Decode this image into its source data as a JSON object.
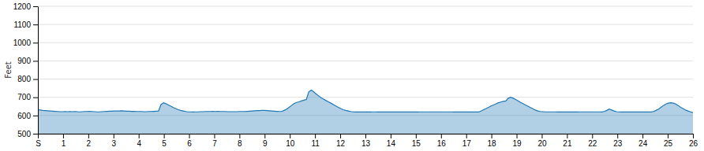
{
  "chart_data": {
    "type": "area",
    "ylabel": "Feet",
    "xlim": [
      0,
      26
    ],
    "ylim": [
      500,
      1200
    ],
    "yticks": [
      500,
      600,
      700,
      800,
      900,
      1000,
      1100,
      1200
    ],
    "xticks": [
      {
        "value": 0,
        "label": "S"
      },
      1,
      2,
      3,
      4,
      5,
      6,
      7,
      8,
      9,
      10,
      11,
      12,
      13,
      14,
      15,
      16,
      17,
      18,
      19,
      20,
      21,
      22,
      23,
      24,
      25,
      26
    ],
    "grid": true,
    "x": [
      0,
      0.0977,
      0.1955,
      0.2932,
      0.391,
      0.4887,
      0.5865,
      0.6842,
      0.782,
      0.8797,
      0.9774,
      1.0752,
      1.1729,
      1.2707,
      1.3684,
      1.4662,
      1.5639,
      1.6617,
      1.7594,
      1.8571,
      1.9549,
      2.0526,
      2.1504,
      2.2481,
      2.3459,
      2.4436,
      2.5414,
      2.6391,
      2.7368,
      2.8346,
      2.9323,
      3.0301,
      3.1278,
      3.2256,
      3.3233,
      3.4211,
      3.5188,
      3.6165,
      3.7143,
      3.812,
      3.9098,
      4.0075,
      4.1053,
      4.203,
      4.3008,
      4.3985,
      4.4962,
      4.594,
      4.6917,
      4.7895,
      4.8872,
      4.985,
      5.0827,
      5.1805,
      5.2782,
      5.3759,
      5.4737,
      5.5714,
      5.6692,
      5.7669,
      5.8647,
      5.9624,
      6.0602,
      6.1579,
      6.2556,
      6.3534,
      6.4511,
      6.5489,
      6.6466,
      6.7444,
      6.8421,
      6.9398,
      7.0376,
      7.1353,
      7.2331,
      7.3308,
      7.4286,
      7.5263,
      7.6241,
      7.7218,
      7.8195,
      7.9173,
      8.015,
      8.1128,
      8.2105,
      8.3083,
      8.406,
      8.5038,
      8.6015,
      8.6992,
      8.797,
      8.8947,
      8.9925,
      9.0902,
      9.188,
      9.2857,
      9.3835,
      9.4812,
      9.5789,
      9.6767,
      9.7744,
      9.8722,
      9.9699,
      10.0677,
      10.1654,
      10.2632,
      10.3609,
      10.4586,
      10.5564,
      10.6541,
      10.7519,
      10.8496,
      10.9474,
      11.0451,
      11.1429,
      11.2406,
      11.3383,
      11.4361,
      11.5338,
      11.6316,
      11.7293,
      11.8271,
      11.9248,
      12.0226,
      12.1203,
      12.218,
      12.3158,
      12.4135,
      12.5113,
      12.609,
      12.7068,
      12.8045,
      12.9023,
      13,
      13.0977,
      13.1955,
      13.2932,
      13.391,
      13.4887,
      13.5865,
      13.6842,
      13.782,
      13.8797,
      13.9774,
      14.0752,
      14.1729,
      14.2707,
      14.3684,
      14.4662,
      14.5639,
      14.6617,
      14.7594,
      14.8571,
      14.9549,
      15.0526,
      15.1504,
      15.2481,
      15.3459,
      15.4436,
      15.5414,
      15.6391,
      15.7368,
      15.8346,
      15.9323,
      16.0301,
      16.1278,
      16.2256,
      16.3233,
      16.4211,
      16.5188,
      16.6165,
      16.7143,
      16.812,
      16.9098,
      17.0075,
      17.1053,
      17.203,
      17.3008,
      17.3985,
      17.4962,
      17.594,
      17.6917,
      17.7895,
      17.8872,
      17.985,
      18.0827,
      18.1805,
      18.2782,
      18.3759,
      18.4737,
      18.5714,
      18.6692,
      18.7669,
      18.8647,
      18.9624,
      19.0602,
      19.1579,
      19.2556,
      19.3534,
      19.4511,
      19.5489,
      19.6466,
      19.7444,
      19.8421,
      19.9398,
      20.0376,
      20.1353,
      20.2331,
      20.3308,
      20.4286,
      20.5263,
      20.6241,
      20.7218,
      20.8195,
      20.9173,
      21.015,
      21.1128,
      21.2105,
      21.3083,
      21.406,
      21.5038,
      21.6015,
      21.6992,
      21.797,
      21.8947,
      21.9925,
      22.0902,
      22.188,
      22.2857,
      22.3835,
      22.4812,
      22.5789,
      22.6767,
      22.7744,
      22.8722,
      22.9699,
      23.0677,
      23.1654,
      23.2632,
      23.3609,
      23.4586,
      23.5564,
      23.6541,
      23.7519,
      23.8496,
      23.9474,
      24.0451,
      24.1429,
      24.2406,
      24.3383,
      24.4361,
      24.5338,
      24.6316,
      24.7293,
      24.8271,
      24.9248,
      25.0226,
      25.1203,
      25.218,
      25.3158,
      25.4135,
      25.5113,
      25.609,
      25.7068,
      25.8045,
      25.9023,
      26
    ],
    "values": [
      632,
      630,
      628,
      627,
      626,
      625,
      624,
      623,
      622,
      621,
      621,
      622,
      621,
      622,
      621,
      622,
      621,
      620,
      621,
      622,
      622,
      623,
      622,
      621,
      620,
      620,
      621,
      622,
      623,
      624,
      624,
      625,
      625,
      625,
      626,
      625,
      624,
      624,
      623,
      623,
      622,
      622,
      622,
      621,
      621,
      622,
      622,
      623,
      624,
      625,
      660,
      670,
      665,
      658,
      651,
      644,
      638,
      632,
      628,
      625,
      622,
      620,
      620,
      619,
      620,
      620,
      621,
      621,
      622,
      622,
      622,
      623,
      622,
      623,
      622,
      622,
      622,
      621,
      621,
      621,
      621,
      621,
      622,
      622,
      622,
      623,
      624,
      625,
      626,
      627,
      627,
      628,
      628,
      627,
      626,
      625,
      624,
      623,
      622,
      622,
      628,
      635,
      645,
      655,
      665,
      672,
      675,
      680,
      684,
      688,
      730,
      740,
      730,
      718,
      708,
      698,
      690,
      682,
      675,
      668,
      660,
      652,
      645,
      638,
      632,
      628,
      625,
      622,
      620,
      619,
      619,
      619,
      619,
      619,
      619,
      619,
      620,
      620,
      619,
      619,
      619,
      619,
      619,
      619,
      619,
      619,
      619,
      619,
      619,
      619,
      619,
      619,
      619,
      619,
      619,
      620,
      620,
      620,
      620,
      620,
      620,
      620,
      620,
      620,
      620,
      620,
      620,
      620,
      620,
      619,
      619,
      619,
      619,
      619,
      619,
      619,
      619,
      619,
      619,
      619,
      625,
      632,
      638,
      645,
      652,
      658,
      664,
      670,
      674,
      678,
      680,
      695,
      700,
      695,
      688,
      680,
      672,
      665,
      658,
      651,
      644,
      637,
      630,
      625,
      622,
      621,
      620,
      620,
      620,
      620,
      620,
      619,
      619,
      619,
      619,
      619,
      619,
      619,
      619,
      619,
      620,
      620,
      620,
      620,
      620,
      620,
      620,
      620,
      620,
      619,
      622,
      628,
      635,
      630,
      625,
      621,
      620,
      619,
      619,
      619,
      619,
      619,
      619,
      619,
      619,
      619,
      619,
      619,
      619,
      619,
      622,
      628,
      635,
      645,
      655,
      663,
      668,
      670,
      668,
      663,
      655,
      645,
      638,
      630,
      625,
      620,
      616
    ]
  }
}
